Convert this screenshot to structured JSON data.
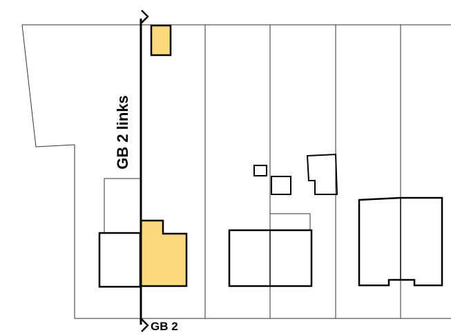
{
  "section_line": {
    "label_vertical": "GB 2 links",
    "label_bottom": "GB 2"
  },
  "colors": {
    "highlight": "#fcd97c",
    "stroke": "#000000",
    "thin_stroke": "#333333",
    "background": "#ffffff"
  }
}
